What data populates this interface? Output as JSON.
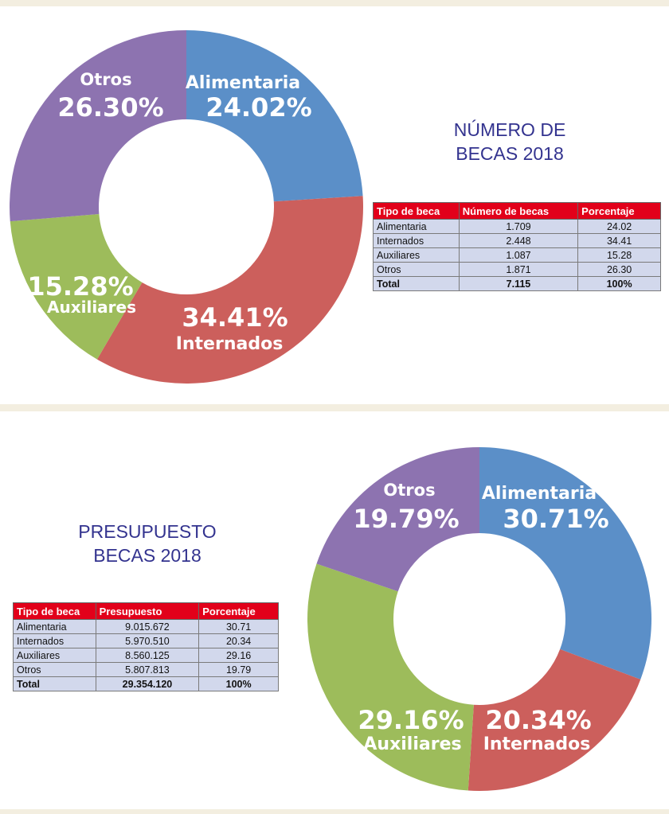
{
  "colors": {
    "Alimentaria": "#5b8fc8",
    "Internados": "#cc5f5c",
    "Auxiliares": "#9dbc5b",
    "Otros": "#8d73b0",
    "title_color": "#33338f",
    "table_header": "#e2001a",
    "table_cell": "#d2d8ec"
  },
  "numero": {
    "title_line1": "NÚMERO DE",
    "title_line2": "BECAS 2018",
    "table": {
      "headers": [
        "Tipo de beca",
        "Número de becas",
        "Porcentaje"
      ],
      "rows": [
        [
          "Alimentaria",
          "1.709",
          "24.02"
        ],
        [
          "Internados",
          "2.448",
          "34.41"
        ],
        [
          "Auxiliares",
          "1.087",
          "15.28"
        ],
        [
          "Otros",
          "1.871",
          "26.30"
        ]
      ],
      "total": [
        "Total",
        "7.115",
        "100%"
      ]
    }
  },
  "presupuesto": {
    "title_line1": "PRESUPUESTO",
    "title_line2": "BECAS 2018",
    "table": {
      "headers": [
        "Tipo de beca",
        "Presupuesto",
        "Porcentaje"
      ],
      "rows": [
        [
          "Alimentaria",
          "9.015.672",
          "30.71"
        ],
        [
          "Internados",
          "5.970.510",
          "20.34"
        ],
        [
          "Auxiliares",
          "8.560.125",
          "29.16"
        ],
        [
          "Otros",
          "5.807.813",
          "19.79"
        ]
      ],
      "total": [
        "Total",
        "29.354.120",
        "100%"
      ]
    }
  },
  "chart_data": [
    {
      "type": "pie",
      "title": "NÚMERO DE BECAS 2018",
      "categories": [
        "Alimentaria",
        "Internados",
        "Auxiliares",
        "Otros"
      ],
      "values": [
        24.02,
        34.41,
        15.28,
        26.3
      ],
      "labels": [
        "24.02%",
        "34.41%",
        "15.28%",
        "26.30%"
      ]
    },
    {
      "type": "pie",
      "title": "PRESUPUESTO BECAS 2018",
      "categories": [
        "Alimentaria",
        "Internados",
        "Auxiliares",
        "Otros"
      ],
      "values": [
        30.71,
        20.34,
        29.16,
        19.79
      ],
      "labels": [
        "30.71%",
        "20.34%",
        "29.16%",
        "19.79%"
      ]
    }
  ]
}
